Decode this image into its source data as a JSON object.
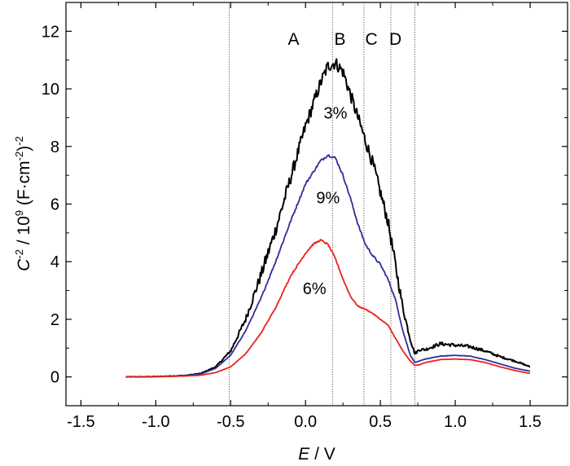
{
  "chart_data": {
    "type": "line",
    "xlabel_main": "E",
    "xlabel_rest": " / V",
    "ylabel_main": "C",
    "ylabel_sup": "-2",
    "ylabel_mid": " / 10",
    "ylabel_exp": "9",
    "ylabel_unit_a": " (F·cm",
    "ylabel_unit_sup": "-2",
    "ylabel_unit_b": ")",
    "ylabel_unit_sup2": "-2",
    "xlim": [
      -1.6,
      1.75
    ],
    "ylim": [
      -1,
      13
    ],
    "xticks": [
      -1.5,
      -1.0,
      -0.5,
      0.0,
      0.5,
      1.0,
      1.5
    ],
    "xtick_labels": [
      "-1.5",
      "-1.0",
      "-0.5",
      "0.0",
      "0.5",
      "1.0",
      "1.5"
    ],
    "yticks": [
      0,
      2,
      4,
      6,
      8,
      10,
      12
    ],
    "ytick_labels": [
      "0",
      "2",
      "4",
      "6",
      "8",
      "10",
      "12"
    ],
    "grid": false,
    "vlines": [
      -0.51,
      0.18,
      0.39,
      0.57,
      0.73
    ],
    "regions": [
      {
        "label": "A",
        "x": -0.08,
        "y": 11.75
      },
      {
        "label": "B",
        "x": 0.23,
        "y": 11.75
      },
      {
        "label": "C",
        "x": 0.44,
        "y": 11.75
      },
      {
        "label": "D",
        "x": 0.6,
        "y": 11.75
      }
    ],
    "series": [
      {
        "name": "3%",
        "color": "#000000",
        "label_pos": [
          0.2,
          9.2
        ],
        "noise": 0.22,
        "points": [
          [
            -1.2,
            0
          ],
          [
            -1.0,
            0.01
          ],
          [
            -0.8,
            0.05
          ],
          [
            -0.7,
            0.12
          ],
          [
            -0.6,
            0.35
          ],
          [
            -0.5,
            0.9
          ],
          [
            -0.4,
            2.0
          ],
          [
            -0.3,
            3.5
          ],
          [
            -0.2,
            5.1
          ],
          [
            -0.1,
            6.9
          ],
          [
            0.0,
            8.7
          ],
          [
            0.1,
            10.2
          ],
          [
            0.15,
            10.8
          ],
          [
            0.2,
            10.9
          ],
          [
            0.25,
            10.6
          ],
          [
            0.3,
            9.8
          ],
          [
            0.35,
            9.0
          ],
          [
            0.4,
            8.2
          ],
          [
            0.45,
            7.4
          ],
          [
            0.5,
            6.4
          ],
          [
            0.55,
            5.4
          ],
          [
            0.6,
            3.9
          ],
          [
            0.65,
            2.4
          ],
          [
            0.7,
            1.3
          ],
          [
            0.73,
            0.8
          ],
          [
            0.76,
            0.95
          ],
          [
            0.8,
            0.95
          ],
          [
            0.9,
            1.15
          ],
          [
            1.0,
            1.1
          ],
          [
            1.1,
            1.05
          ],
          [
            1.2,
            0.9
          ],
          [
            1.3,
            0.7
          ],
          [
            1.4,
            0.55
          ],
          [
            1.5,
            0.35
          ]
        ]
      },
      {
        "name": "9%",
        "color": "#2e2e9a",
        "label_pos": [
          0.15,
          6.25
        ],
        "noise": 0.04,
        "points": [
          [
            -1.2,
            0
          ],
          [
            -1.0,
            0.01
          ],
          [
            -0.8,
            0.04
          ],
          [
            -0.7,
            0.1
          ],
          [
            -0.6,
            0.3
          ],
          [
            -0.5,
            0.75
          ],
          [
            -0.4,
            1.6
          ],
          [
            -0.3,
            2.7
          ],
          [
            -0.2,
            4.0
          ],
          [
            -0.1,
            5.4
          ],
          [
            0.0,
            6.7
          ],
          [
            0.1,
            7.5
          ],
          [
            0.15,
            7.7
          ],
          [
            0.2,
            7.6
          ],
          [
            0.25,
            7.0
          ],
          [
            0.3,
            6.2
          ],
          [
            0.35,
            5.3
          ],
          [
            0.4,
            4.6
          ],
          [
            0.45,
            4.2
          ],
          [
            0.5,
            3.9
          ],
          [
            0.55,
            3.4
          ],
          [
            0.6,
            2.7
          ],
          [
            0.65,
            1.6
          ],
          [
            0.7,
            0.75
          ],
          [
            0.73,
            0.5
          ],
          [
            0.76,
            0.55
          ],
          [
            0.8,
            0.62
          ],
          [
            0.9,
            0.72
          ],
          [
            1.0,
            0.75
          ],
          [
            1.1,
            0.72
          ],
          [
            1.2,
            0.6
          ],
          [
            1.3,
            0.45
          ],
          [
            1.4,
            0.3
          ],
          [
            1.5,
            0.2
          ]
        ]
      },
      {
        "name": "6%",
        "color": "#e8231e",
        "label_pos": [
          0.06,
          3.1
        ],
        "noise": 0.03,
        "points": [
          [
            -1.2,
            0
          ],
          [
            -1.0,
            0.01
          ],
          [
            -0.8,
            0.03
          ],
          [
            -0.7,
            0.06
          ],
          [
            -0.6,
            0.15
          ],
          [
            -0.5,
            0.35
          ],
          [
            -0.4,
            0.8
          ],
          [
            -0.3,
            1.5
          ],
          [
            -0.2,
            2.4
          ],
          [
            -0.1,
            3.5
          ],
          [
            0.0,
            4.3
          ],
          [
            0.05,
            4.6
          ],
          [
            0.1,
            4.75
          ],
          [
            0.15,
            4.6
          ],
          [
            0.2,
            4.1
          ],
          [
            0.25,
            3.4
          ],
          [
            0.3,
            2.8
          ],
          [
            0.35,
            2.45
          ],
          [
            0.4,
            2.35
          ],
          [
            0.45,
            2.2
          ],
          [
            0.5,
            2.0
          ],
          [
            0.55,
            1.8
          ],
          [
            0.6,
            1.35
          ],
          [
            0.65,
            0.9
          ],
          [
            0.7,
            0.55
          ],
          [
            0.73,
            0.4
          ],
          [
            0.76,
            0.42
          ],
          [
            0.8,
            0.5
          ],
          [
            0.9,
            0.6
          ],
          [
            1.0,
            0.62
          ],
          [
            1.1,
            0.6
          ],
          [
            1.2,
            0.5
          ],
          [
            1.3,
            0.35
          ],
          [
            1.4,
            0.22
          ],
          [
            1.5,
            0.12
          ]
        ]
      }
    ]
  }
}
